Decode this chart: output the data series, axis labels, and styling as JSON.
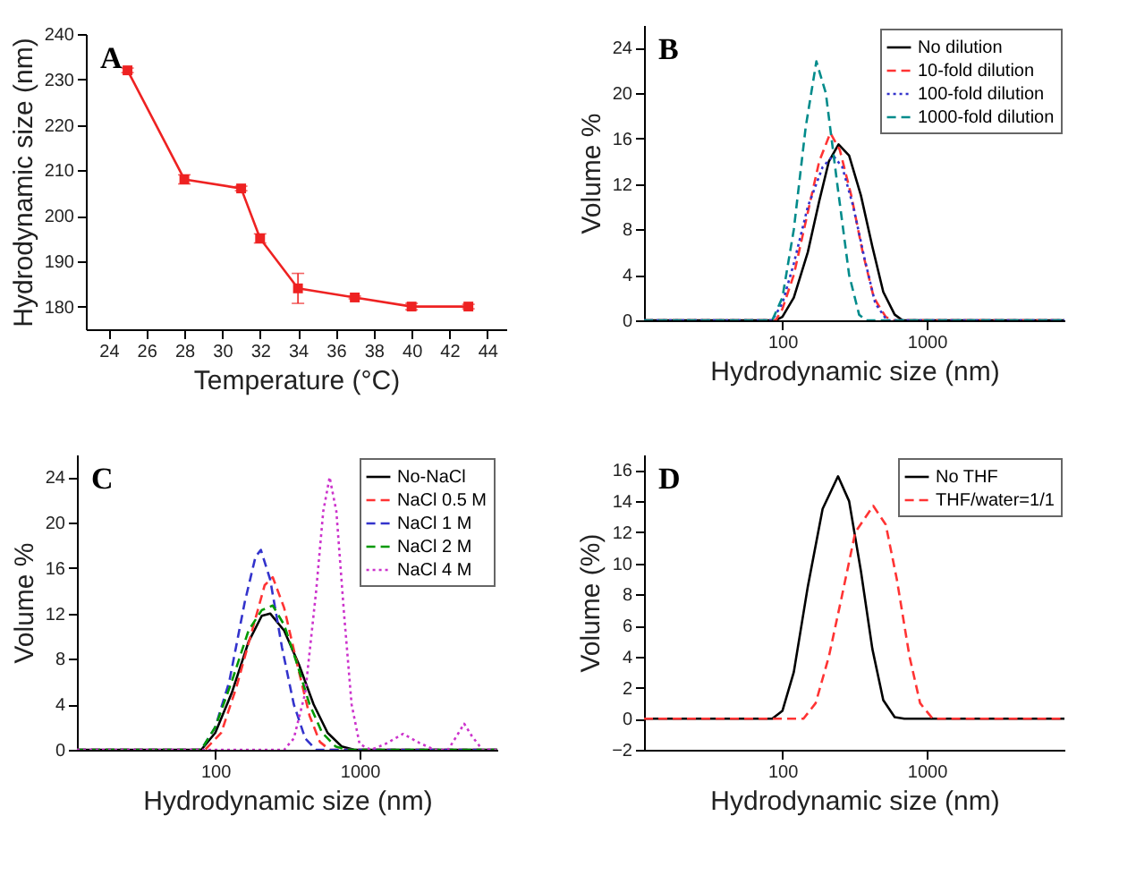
{
  "chart_data": [
    {
      "type": "line",
      "annotations": [
        "A"
      ],
      "xlabel": "Temperature (°C)",
      "ylabel": "Hydrodynamic size (nm)",
      "x": [
        25,
        28,
        31,
        32,
        34,
        37,
        40,
        43
      ],
      "values": [
        232,
        208,
        206,
        195,
        184,
        182,
        180,
        180
      ],
      "errors": [
        0.5,
        1,
        0.5,
        1,
        3.3,
        0.3,
        0.7,
        0.5
      ],
      "color": "#ee2222",
      "marker": "square",
      "xlim": [
        22.8,
        45
      ],
      "xticks": [
        24,
        26,
        28,
        30,
        32,
        34,
        36,
        38,
        40,
        42,
        44
      ],
      "ylim": [
        175,
        240
      ],
      "yticks": [
        180,
        190,
        200,
        210,
        220,
        230,
        240
      ]
    },
    {
      "type": "line",
      "annotations": [
        "B"
      ],
      "xlabel": "Hydrodynamic size (nm)",
      "ylabel": "Volume %",
      "log": "x",
      "legend": "top right",
      "xlim": [
        11,
        9000
      ],
      "xticks": [
        100,
        1000
      ],
      "ylim": [
        0,
        26
      ],
      "yticks": [
        0,
        4,
        8,
        12,
        16,
        20,
        24
      ],
      "series": [
        {
          "name": "No dilution",
          "color": "#000000",
          "line_style": "solid",
          "x": [
            11,
            90,
            100,
            120,
            150,
            180,
            210,
            245,
            290,
            350,
            420,
            500,
            600,
            680,
            9000
          ],
          "values": [
            0,
            0,
            0.3,
            2,
            6,
            10.5,
            14,
            15.5,
            14.5,
            11,
            6.5,
            2.5,
            0.5,
            0,
            0
          ]
        },
        {
          "name": "10-fold dilution",
          "color": "#ff3333",
          "line_style": "dashed",
          "x": [
            11,
            90,
            100,
            120,
            150,
            180,
            215,
            250,
            300,
            360,
            430,
            520,
            580,
            9000
          ],
          "values": [
            0,
            0,
            1,
            4,
            9.5,
            14,
            16.5,
            15,
            11,
            6,
            2,
            0.3,
            0,
            0
          ]
        },
        {
          "name": "100-fold dilution",
          "color": "#3333cc",
          "line_style": "dotted",
          "x": [
            11,
            85,
            100,
            120,
            150,
            190,
            225,
            260,
            310,
            370,
            440,
            530,
            9000
          ],
          "values": [
            0,
            0,
            1.5,
            5,
            10,
            13.5,
            14.5,
            13.5,
            10,
            5.5,
            1.5,
            0,
            0
          ]
        },
        {
          "name": "1000-fold dilution",
          "color": "#008b8b",
          "line_style": "dashed",
          "x": [
            11,
            85,
            100,
            120,
            145,
            172,
            200,
            240,
            290,
            340,
            380,
            9000
          ],
          "values": [
            0,
            0,
            2,
            8,
            17,
            22.8,
            20,
            12,
            4,
            0.5,
            0,
            0
          ]
        }
      ]
    },
    {
      "type": "line",
      "annotations": [
        "C"
      ],
      "xlabel": "Hydrodynamic size (nm)",
      "ylabel": "Volume %",
      "log": "x",
      "legend": "top right",
      "xlim": [
        11,
        9000
      ],
      "xticks": [
        100,
        1000
      ],
      "ylim": [
        0,
        26
      ],
      "yticks": [
        0,
        4,
        8,
        12,
        16,
        20,
        24
      ],
      "series": [
        {
          "name": "No-NaCl",
          "color": "#000000",
          "line_style": "solid",
          "x": [
            11,
            80,
            100,
            130,
            170,
            210,
            240,
            300,
            380,
            480,
            600,
            750,
            920,
            9000
          ],
          "values": [
            0,
            0,
            1.5,
            5,
            9.5,
            11.8,
            12,
            10.5,
            7.5,
            4,
            1.5,
            0.3,
            0,
            0
          ]
        },
        {
          "name": "NaCl 0.5 M",
          "color": "#ff3333",
          "line_style": "dashed",
          "x": [
            11,
            85,
            110,
            140,
            180,
            220,
            250,
            300,
            370,
            450,
            530,
            620,
            9000
          ],
          "values": [
            0,
            0,
            1.5,
            5.5,
            10.5,
            14.5,
            15.2,
            12.5,
            7.5,
            3,
            0.7,
            0,
            0
          ]
        },
        {
          "name": "NaCl 1 M",
          "color": "#3333cc",
          "line_style": "dashed",
          "x": [
            11,
            80,
            100,
            125,
            160,
            190,
            207,
            240,
            290,
            350,
            420,
            500,
            9000
          ],
          "values": [
            0,
            0,
            2,
            6,
            13,
            17,
            17.6,
            15,
            9,
            4,
            1,
            0,
            0
          ]
        },
        {
          "name": "NaCl 2 M",
          "color": "#009900",
          "line_style": "dashed",
          "x": [
            11,
            80,
            100,
            130,
            170,
            210,
            250,
            300,
            370,
            450,
            550,
            680,
            820,
            9000
          ],
          "values": [
            0,
            0,
            2,
            6,
            10.5,
            12.3,
            12.7,
            11,
            7.5,
            4,
            1.5,
            0.3,
            0,
            0
          ]
        },
        {
          "name": "NaCl 4 M",
          "color": "#cc33cc",
          "line_style": "dotted",
          "x": [
            11,
            300,
            350,
            420,
            500,
            560,
            620,
            690,
            780,
            880,
            1000,
            1200,
            1500,
            2000,
            2600,
            3300,
            4100,
            4700,
            5300,
            6000,
            7100,
            9000
          ],
          "values": [
            0,
            0,
            1,
            5,
            14,
            21,
            24,
            21,
            12,
            4,
            0.5,
            0,
            0.5,
            1.4,
            0.6,
            0,
            0,
            1.2,
            2.3,
            1.2,
            0,
            0
          ]
        }
      ]
    },
    {
      "type": "line",
      "annotations": [
        "D"
      ],
      "xlabel": "Hydrodynamic size (nm)",
      "ylabel": "Volume (%)",
      "log": "x",
      "legend": "top right",
      "xlim": [
        11,
        9000
      ],
      "xticks": [
        100,
        1000
      ],
      "ylim": [
        -2,
        17
      ],
      "yticks": [
        -2,
        0,
        2,
        4,
        6,
        8,
        10,
        12,
        14,
        16
      ],
      "series": [
        {
          "name": "No THF",
          "color": "#000000",
          "line_style": "solid",
          "x": [
            11,
            85,
            100,
            120,
            150,
            190,
            243,
            290,
            350,
            420,
            500,
            600,
            700,
            9000
          ],
          "values": [
            0,
            0,
            0.5,
            3,
            8.5,
            13.5,
            15.6,
            14,
            9.5,
            4.5,
            1.2,
            0.1,
            0,
            0
          ]
        },
        {
          "name": "THF/water=1/1",
          "color": "#ff3333",
          "line_style": "dashed",
          "x": [
            11,
            140,
            170,
            210,
            260,
            320,
            426,
            520,
            620,
            760,
            900,
            1100,
            9000
          ],
          "values": [
            0,
            0,
            1,
            4,
            8,
            12,
            13.7,
            12.5,
            9,
            4,
            1,
            0,
            0
          ]
        }
      ]
    }
  ]
}
